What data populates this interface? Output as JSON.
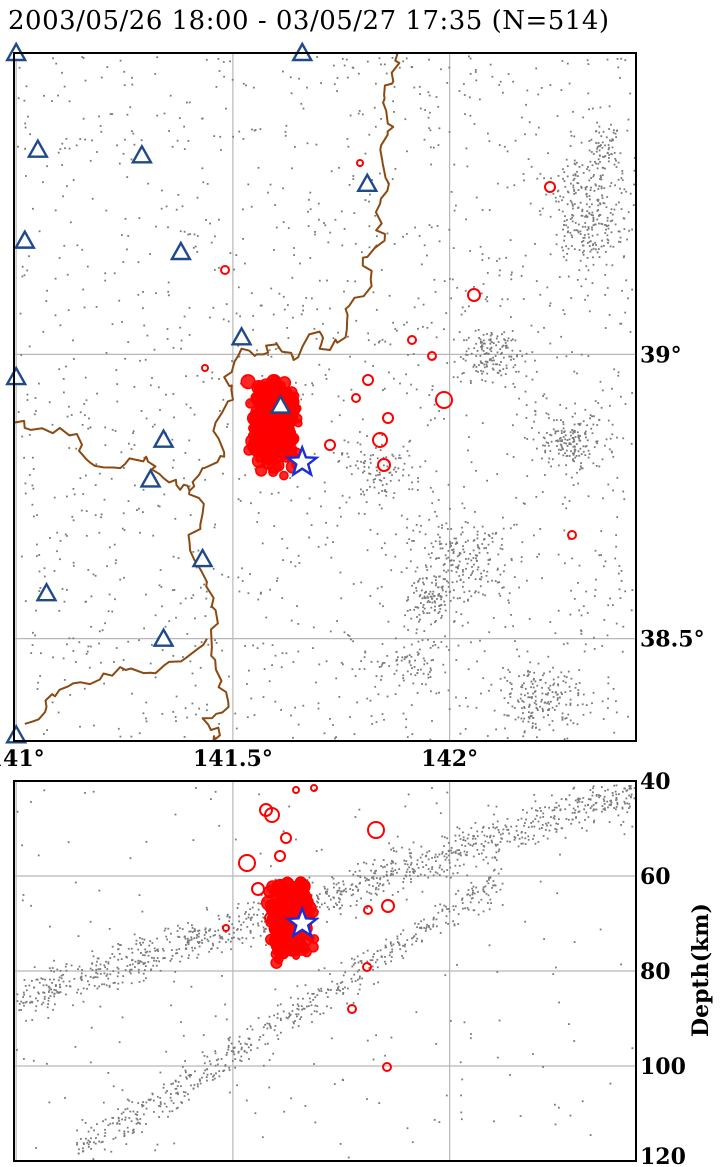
{
  "title": "2003/05/26 18:00 - 03/05/27 17:35 (N=514)",
  "colors": {
    "background_quake": "#7a7a7a",
    "aftershock": "#ff0000",
    "mainshock_star": "#1a2fd6",
    "station": "#1f4a8a",
    "coastline": "#8b4a12",
    "grid": "#b8b8b8",
    "frame": "#000000"
  },
  "map_panel": {
    "lon_range": [
      140.995,
      142.43
    ],
    "lat_range": [
      38.32,
      39.53
    ],
    "lon_ticks": [
      {
        "value": 141.0,
        "label": "141°"
      },
      {
        "value": 141.5,
        "label": "141.5°"
      },
      {
        "value": 142.0,
        "label": "142°"
      }
    ],
    "lat_ticks": [
      {
        "value": 39.0,
        "label": "39°"
      },
      {
        "value": 38.5,
        "label": "38.5°"
      }
    ],
    "grid": true,
    "mainshock": {
      "lon": 141.66,
      "lat": 38.81
    },
    "stations": [
      [
        141.0,
        39.53
      ],
      [
        141.66,
        39.53
      ],
      [
        141.05,
        39.36
      ],
      [
        141.29,
        39.35
      ],
      [
        141.81,
        39.3
      ],
      [
        141.02,
        39.2
      ],
      [
        141.38,
        39.18
      ],
      [
        141.52,
        39.03
      ],
      [
        141.0,
        38.96
      ],
      [
        141.61,
        38.91
      ],
      [
        141.34,
        38.85
      ],
      [
        141.31,
        38.78
      ],
      [
        141.43,
        38.64
      ],
      [
        141.07,
        38.58
      ],
      [
        141.34,
        38.5
      ],
      [
        141.0,
        38.33
      ]
    ],
    "coastline": [
      [
        141.88,
        39.53
      ],
      [
        141.87,
        39.48
      ],
      [
        141.85,
        39.45
      ],
      [
        141.87,
        39.4
      ],
      [
        141.84,
        39.36
      ],
      [
        141.86,
        39.3
      ],
      [
        141.83,
        39.25
      ],
      [
        141.85,
        39.2
      ],
      [
        141.8,
        39.17
      ],
      [
        141.82,
        39.12
      ],
      [
        141.76,
        39.08
      ],
      [
        141.76,
        39.03
      ],
      [
        141.7,
        39.01
      ],
      [
        141.7,
        39.04
      ],
      [
        141.64,
        38.99
      ],
      [
        141.6,
        39.02
      ],
      [
        141.57,
        39.0
      ],
      [
        141.52,
        39.01
      ],
      [
        141.48,
        38.96
      ],
      [
        141.5,
        38.92
      ],
      [
        141.46,
        38.88
      ],
      [
        141.48,
        38.82
      ],
      [
        141.43,
        38.8
      ],
      [
        141.4,
        38.76
      ],
      [
        141.43,
        38.72
      ],
      [
        141.4,
        38.67
      ],
      [
        141.44,
        38.6
      ],
      [
        141.46,
        38.55
      ],
      [
        141.45,
        38.47
      ],
      [
        141.47,
        38.42
      ],
      [
        141.49,
        38.38
      ],
      [
        141.43,
        38.36
      ],
      [
        141.47,
        38.33
      ],
      [
        141.46,
        38.32
      ]
    ],
    "coastline_west": [
      [
        141.44,
        38.5
      ],
      [
        141.38,
        38.46
      ],
      [
        141.31,
        38.44
      ],
      [
        141.24,
        38.45
      ],
      [
        141.17,
        38.42
      ],
      [
        141.1,
        38.41
      ],
      [
        141.07,
        38.38
      ],
      [
        141.02,
        38.35
      ]
    ],
    "coastline_north_inlet": [
      [
        140.995,
        38.88
      ],
      [
        141.06,
        38.87
      ],
      [
        141.14,
        38.86
      ],
      [
        141.17,
        38.81
      ],
      [
        141.24,
        38.8
      ],
      [
        141.3,
        38.82
      ],
      [
        141.33,
        38.79
      ],
      [
        141.37,
        38.77
      ],
      [
        141.4,
        38.76
      ]
    ]
  },
  "depth_panel": {
    "lon_range": [
      140.995,
      142.43
    ],
    "depth_range": [
      40,
      120
    ],
    "depth_ticks": [
      40,
      60,
      80,
      100,
      120
    ],
    "ylabel": "Depth(km)",
    "grid": true,
    "mainshock": {
      "lon": 141.66,
      "depth": 70
    }
  }
}
